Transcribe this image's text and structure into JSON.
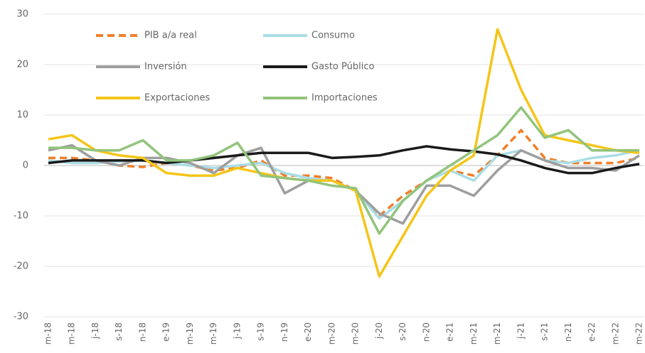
{
  "chart_data": {
    "type": "line",
    "categories": [
      "m-18",
      "m-18",
      "j-18",
      "s-18",
      "n-18",
      "e-19",
      "m-19",
      "m-19",
      "j-19",
      "s-19",
      "n-19",
      "e-20",
      "m-20",
      "m-20",
      "j-20",
      "s-20",
      "n-20",
      "e-21",
      "m-21",
      "m-21",
      "j-21",
      "s-21",
      "n-21",
      "e-22",
      "m-22",
      "m-22"
    ],
    "series": [
      {
        "name": "PIB a/a real",
        "color": "#f07f2a",
        "dashed": true,
        "values": [
          1.5,
          1.5,
          1,
          0,
          -0.3,
          0.5,
          0,
          -1,
          -0.5,
          1,
          -2,
          -2,
          -2.5,
          -5,
          -10,
          -6,
          -3,
          -1,
          -2,
          2,
          7,
          1.5,
          0.5,
          0.5,
          0.5,
          1.5
        ]
      },
      {
        "name": "Consumo",
        "color": "#a9dde6",
        "values": [
          1,
          0.5,
          0.5,
          0.8,
          1,
          0.5,
          0,
          -0.5,
          0,
          0.5,
          -1.5,
          -2.5,
          -3,
          -5,
          -10.5,
          -7,
          -3,
          -1,
          -3,
          2,
          3,
          1,
          0.5,
          1.5,
          2,
          3
        ]
      },
      {
        "name": "Inversión",
        "color": "#9e9e9e",
        "values": [
          3,
          4,
          1,
          0,
          1.5,
          1.5,
          0.5,
          -1.5,
          2,
          3.5,
          -5.5,
          -3,
          -3,
          -5,
          -9.5,
          -11.5,
          -4,
          -4,
          -6,
          -1,
          3,
          1,
          -0.5,
          -0.5,
          -1,
          2
        ]
      },
      {
        "name": "Gasto Público",
        "color": "#1a1a1a",
        "values": [
          0.5,
          1,
          1,
          1,
          1,
          0.5,
          1,
          1.5,
          2,
          2.5,
          2.5,
          2.5,
          1.5,
          1.7,
          2,
          3,
          3.8,
          3.2,
          2.8,
          2.2,
          1,
          -0.5,
          -1.5,
          -1.5,
          -0.5,
          0.3
        ]
      },
      {
        "name": "Exportaciones",
        "color": "#f5c518",
        "values": [
          5.2,
          6,
          3,
          2,
          1.5,
          -1.5,
          -2,
          -2,
          -0.5,
          -1.5,
          -2.5,
          -3,
          -3,
          -5,
          -22,
          -14,
          -6,
          -1,
          2,
          27,
          15,
          6,
          5,
          4,
          3,
          2.5
        ]
      },
      {
        "name": "Importaciones",
        "color": "#92c47c",
        "values": [
          3.5,
          3.5,
          3,
          3,
          5,
          1,
          1,
          2,
          4.5,
          -2,
          -2.5,
          -3,
          -4,
          -4.5,
          -13.5,
          -7,
          -3,
          0,
          3,
          6,
          11.5,
          5.5,
          7,
          3,
          3,
          3
        ]
      }
    ],
    "ylim": [
      -30,
      30
    ],
    "yticks": [
      -30,
      -20,
      -10,
      0,
      10,
      20,
      30
    ],
    "grid": true,
    "legend": "top-left"
  }
}
